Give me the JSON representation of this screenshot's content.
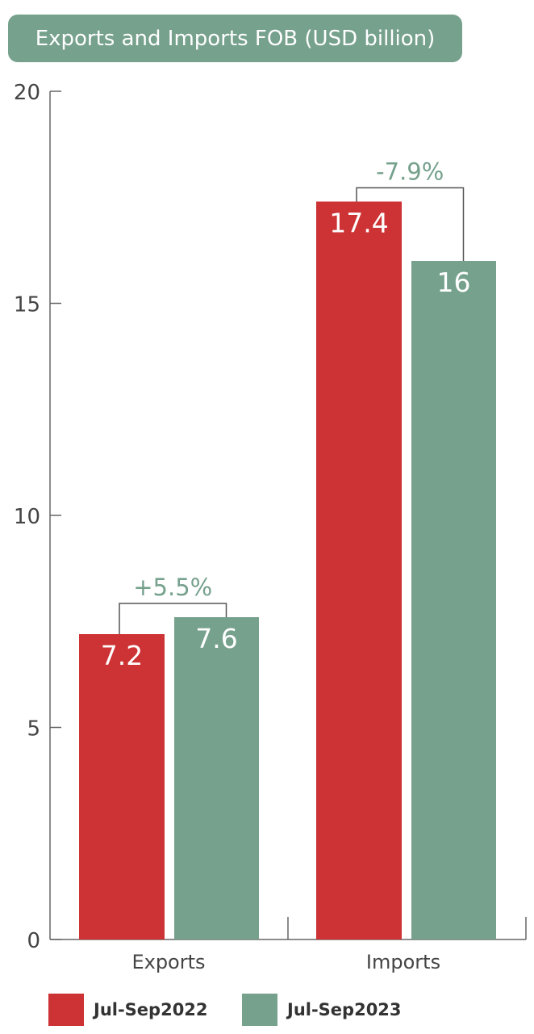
{
  "colors": {
    "series_2022": "#cd3234",
    "series_2023": "#76a18d",
    "axis": "#666666",
    "title_bg": "#76a18d"
  },
  "chart_data": {
    "type": "bar",
    "title": "Exports and Imports FOB (USD billion)",
    "categories": [
      "Exports",
      "Imports"
    ],
    "series": [
      {
        "name": "Jul-Sep2022",
        "values": [
          7.2,
          17.4
        ],
        "labels": [
          "7.2",
          "17.4"
        ]
      },
      {
        "name": "Jul-Sep2023",
        "values": [
          7.6,
          16
        ],
        "labels": [
          "7.6",
          "16"
        ]
      }
    ],
    "ylim": [
      0,
      20
    ],
    "yticks": [
      0,
      5,
      10,
      15,
      20
    ],
    "ytick_labels": [
      "0",
      "5",
      "10",
      "15",
      "20"
    ],
    "annotations": [
      "+5.5%",
      "-7.9%"
    ],
    "grid": false,
    "legend_position": "bottom"
  }
}
